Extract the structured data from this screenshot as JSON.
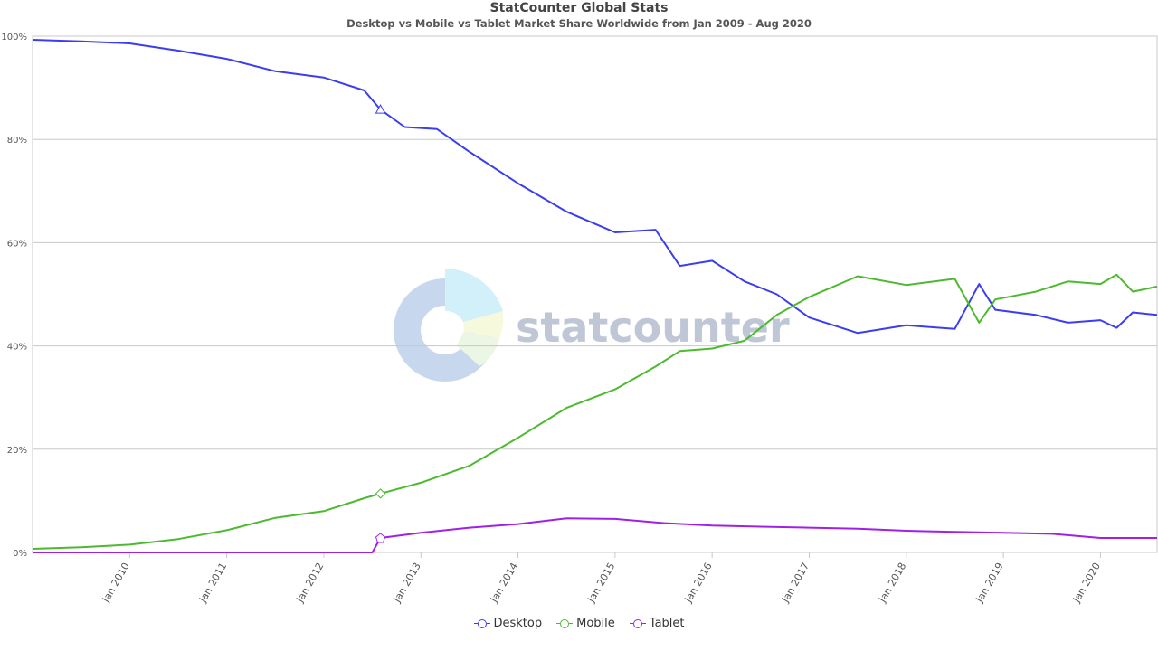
{
  "chart_data": {
    "type": "line",
    "title": "StatCounter Global Stats",
    "subtitle": "Desktop vs Mobile vs Tablet Market Share Worldwide from Jan 2009 - Aug 2020",
    "watermark": "statcounter",
    "xlim": [
      "2009-01",
      "2020-08"
    ],
    "ylim": [
      0,
      100
    ],
    "grid": true,
    "legend_position": "bottom-center",
    "y_ticks": [
      "0%",
      "20%",
      "40%",
      "60%",
      "80%",
      "100%"
    ],
    "x_ticks": [
      "Jan 2010",
      "Jan 2011",
      "Jan 2012",
      "Jan 2013",
      "Jan 2014",
      "Jan 2015",
      "Jan 2016",
      "Jan 2017",
      "Jan 2018",
      "Jan 2019",
      "Jan 2020"
    ],
    "series": [
      {
        "name": "Desktop",
        "color": "#3a3ef0",
        "points": [
          [
            "2009-01",
            99.3
          ],
          [
            "2009-07",
            99.0
          ],
          [
            "2010-01",
            98.6
          ],
          [
            "2010-07",
            97.2
          ],
          [
            "2011-01",
            95.6
          ],
          [
            "2011-07",
            93.2
          ],
          [
            "2012-01",
            92.0
          ],
          [
            "2012-06",
            89.5
          ],
          [
            "2012-08",
            85.8
          ],
          [
            "2012-11",
            82.4
          ],
          [
            "2013-03",
            82.0
          ],
          [
            "2013-07",
            77.6
          ],
          [
            "2014-01",
            71.5
          ],
          [
            "2014-07",
            66.0
          ],
          [
            "2015-01",
            62.0
          ],
          [
            "2015-06",
            62.5
          ],
          [
            "2015-09",
            55.5
          ],
          [
            "2016-01",
            56.5
          ],
          [
            "2016-05",
            52.5
          ],
          [
            "2016-09",
            50.0
          ],
          [
            "2017-01",
            45.5
          ],
          [
            "2017-07",
            42.5
          ],
          [
            "2018-01",
            44.0
          ],
          [
            "2018-07",
            43.3
          ],
          [
            "2018-10",
            52.0
          ],
          [
            "2018-12",
            47.0
          ],
          [
            "2019-05",
            46.0
          ],
          [
            "2019-09",
            44.5
          ],
          [
            "2020-01",
            45.0
          ],
          [
            "2020-03",
            43.5
          ],
          [
            "2020-05",
            46.5
          ],
          [
            "2020-08",
            46.0
          ]
        ]
      },
      {
        "name": "Mobile",
        "color": "#4cba2e",
        "points": [
          [
            "2009-01",
            0.7
          ],
          [
            "2009-07",
            1.0
          ],
          [
            "2010-01",
            1.5
          ],
          [
            "2010-07",
            2.6
          ],
          [
            "2011-01",
            4.3
          ],
          [
            "2011-07",
            6.7
          ],
          [
            "2012-01",
            8.0
          ],
          [
            "2012-06",
            10.5
          ],
          [
            "2012-08",
            11.4
          ],
          [
            "2013-01",
            13.5
          ],
          [
            "2013-07",
            16.8
          ],
          [
            "2014-01",
            22.2
          ],
          [
            "2014-07",
            28.0
          ],
          [
            "2015-01",
            31.6
          ],
          [
            "2015-06",
            36.0
          ],
          [
            "2015-09",
            39.0
          ],
          [
            "2016-01",
            39.5
          ],
          [
            "2016-05",
            41.0
          ],
          [
            "2016-09",
            46.0
          ],
          [
            "2017-01",
            49.5
          ],
          [
            "2017-07",
            53.5
          ],
          [
            "2018-01",
            51.8
          ],
          [
            "2018-07",
            53.0
          ],
          [
            "2018-10",
            44.5
          ],
          [
            "2018-12",
            49.0
          ],
          [
            "2019-05",
            50.5
          ],
          [
            "2019-09",
            52.5
          ],
          [
            "2020-01",
            52.0
          ],
          [
            "2020-03",
            53.8
          ],
          [
            "2020-05",
            50.5
          ],
          [
            "2020-08",
            51.5
          ]
        ]
      },
      {
        "name": "Tablet",
        "color": "#a020e8",
        "points": [
          [
            "2009-01",
            0.0
          ],
          [
            "2012-07",
            0.0
          ],
          [
            "2012-08",
            2.8
          ],
          [
            "2013-01",
            3.8
          ],
          [
            "2013-07",
            4.8
          ],
          [
            "2014-01",
            5.5
          ],
          [
            "2014-07",
            6.6
          ],
          [
            "2015-01",
            6.5
          ],
          [
            "2015-07",
            5.7
          ],
          [
            "2016-01",
            5.2
          ],
          [
            "2016-07",
            5.0
          ],
          [
            "2017-01",
            4.8
          ],
          [
            "2017-07",
            4.6
          ],
          [
            "2018-01",
            4.2
          ],
          [
            "2018-07",
            4.0
          ],
          [
            "2019-01",
            3.8
          ],
          [
            "2019-07",
            3.6
          ],
          [
            "2020-01",
            2.8
          ],
          [
            "2020-08",
            2.8
          ]
        ]
      }
    ]
  }
}
